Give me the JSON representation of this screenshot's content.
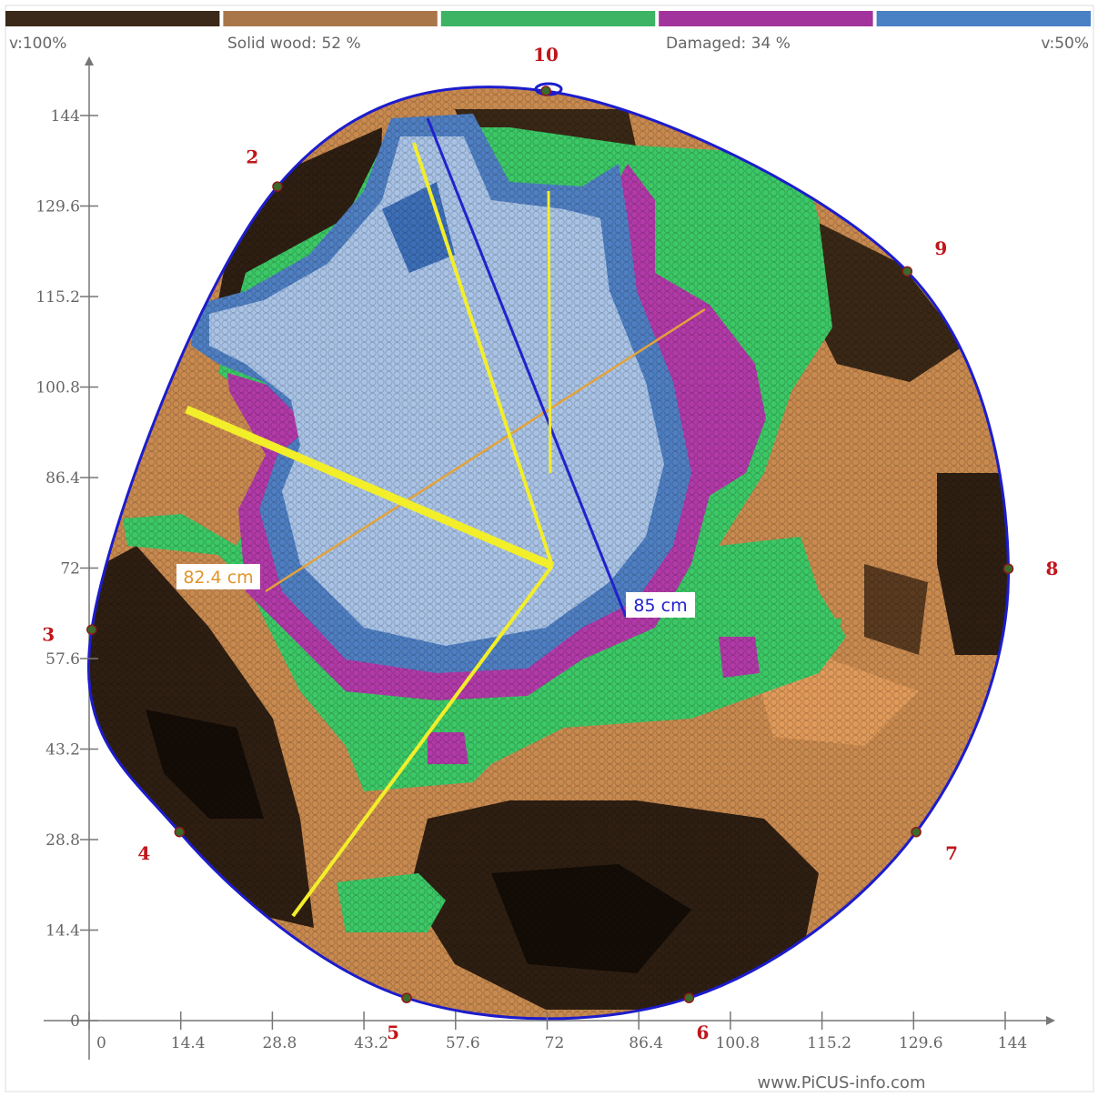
{
  "chart_data": {
    "type": "tomogram",
    "legend": {
      "left": "v:100%",
      "solid": "Solid wood: 52 %",
      "damaged": "Damaged: 34 %",
      "right": "v:50%",
      "colors": [
        "#3b2a1a",
        "#a9764a",
        "#3cb463",
        "#a3339c",
        "#4a80c4"
      ]
    },
    "xlim": [
      0,
      144
    ],
    "ylim": [
      0,
      144
    ],
    "xticks": [
      0,
      14.4,
      28.8,
      43.2,
      57.6,
      72,
      86.4,
      100.8,
      115.2,
      129.6,
      144
    ],
    "yticks": [
      0,
      14.4,
      28.8,
      43.2,
      57.6,
      72,
      86.4,
      100.8,
      115.2,
      129.6,
      144
    ],
    "sensors": [
      {
        "label": "10",
        "x": 71.8,
        "y": 147.9
      },
      {
        "label": "9",
        "x": 128.6,
        "y": 119.2
      },
      {
        "label": "8",
        "x": 144.5,
        "y": 71.9
      },
      {
        "label": "7",
        "x": 130,
        "y": 30
      },
      {
        "label": "6",
        "x": 94.3,
        "y": 3.6
      },
      {
        "label": "5",
        "x": 49.9,
        "y": 3.6
      },
      {
        "label": "4",
        "x": 14.2,
        "y": 30
      },
      {
        "label": "3",
        "x": 0.4,
        "y": 62.2
      },
      {
        "label": "2",
        "x": 29.6,
        "y": 132.7
      }
    ],
    "measurements": {
      "orange": "82.4 cm",
      "blue": "85 cm"
    },
    "footer": "www.PiCUS-info.com"
  }
}
